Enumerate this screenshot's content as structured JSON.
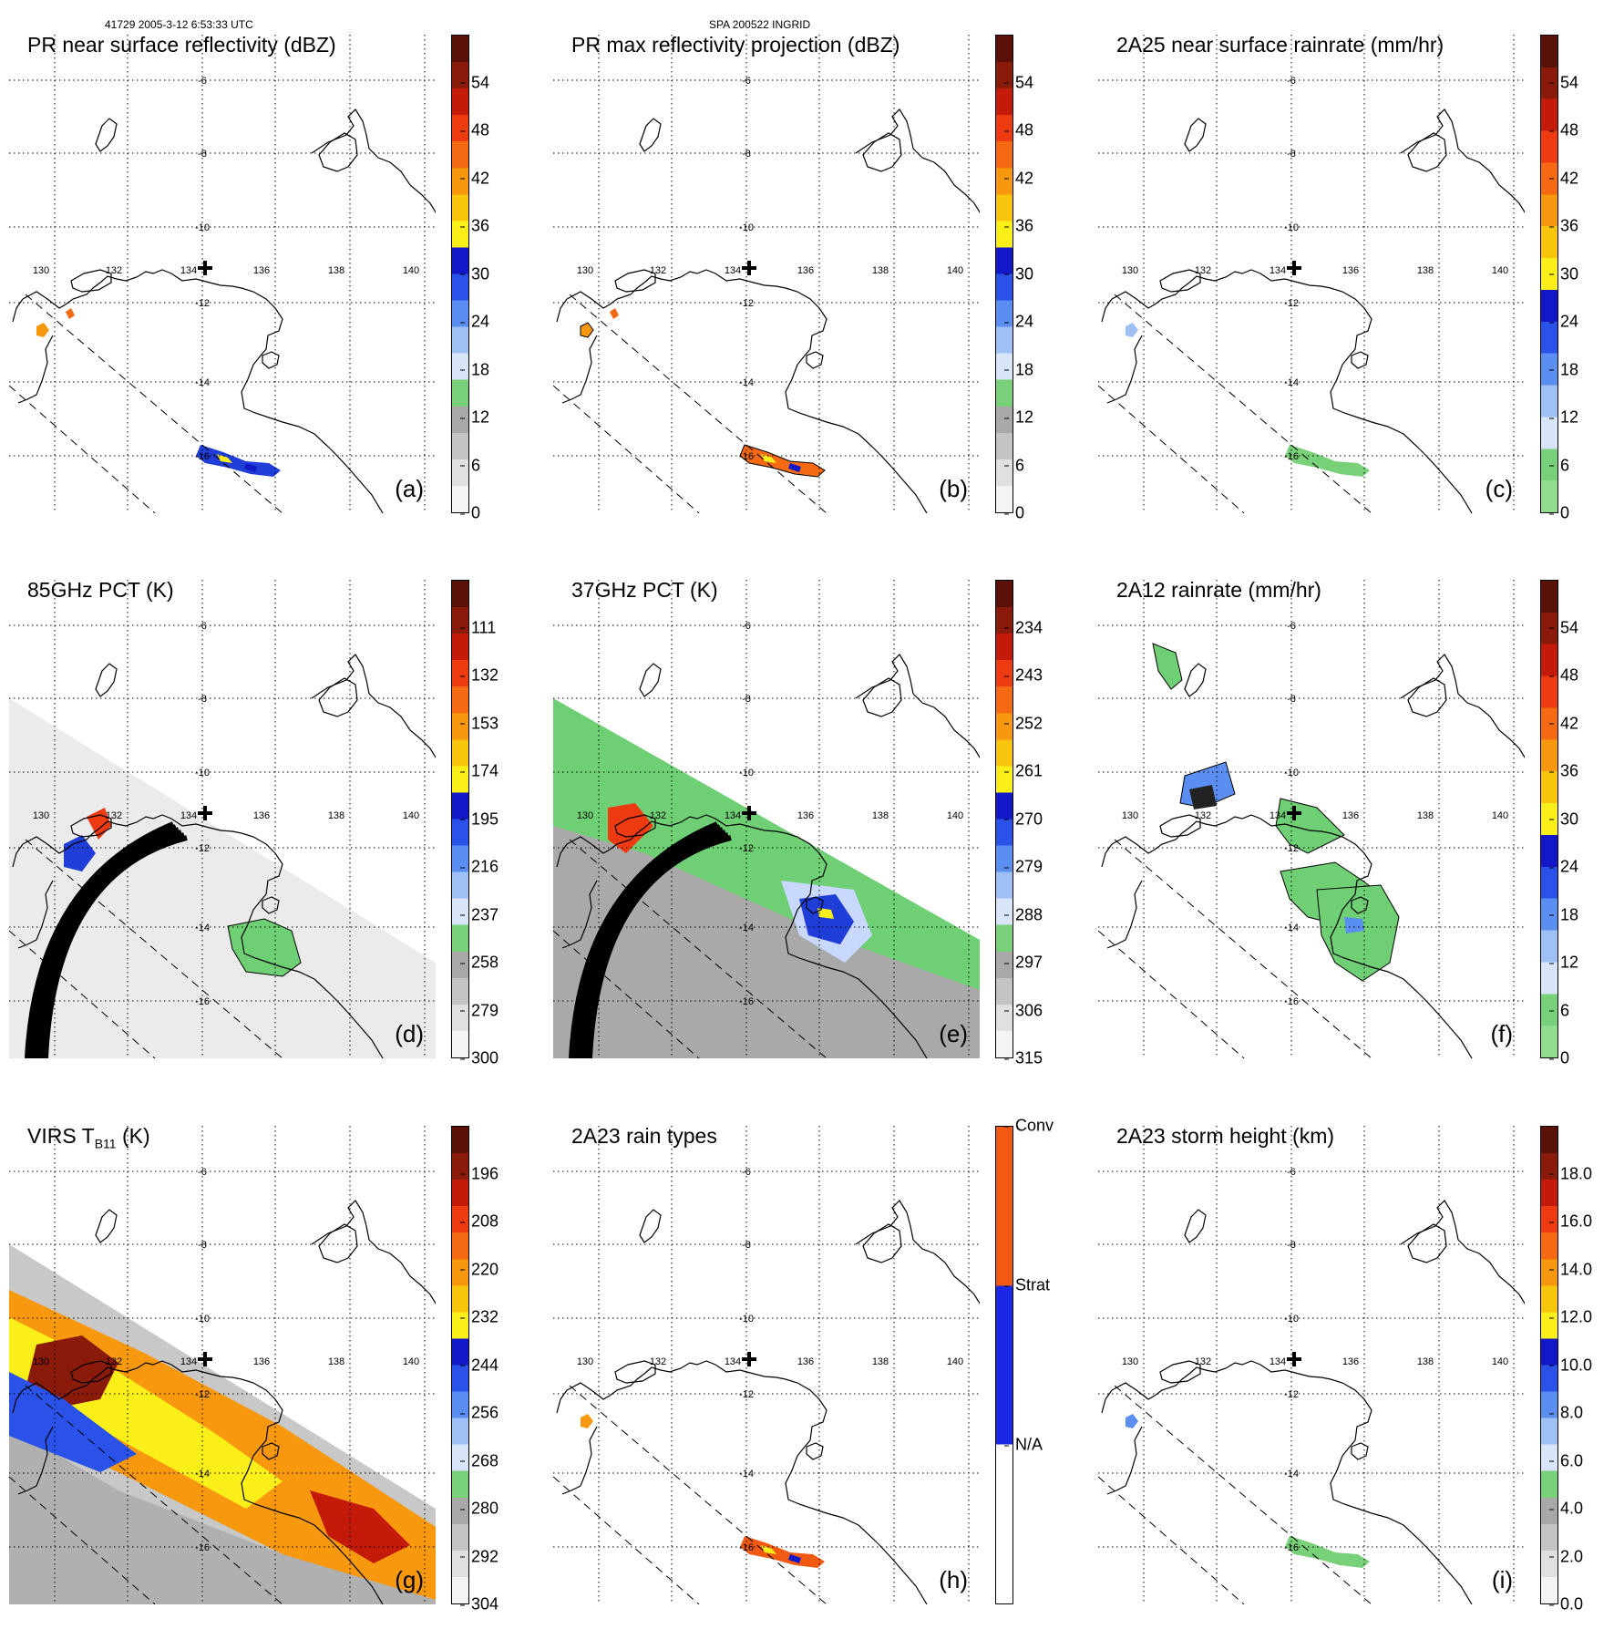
{
  "header": {
    "orbit_info": "41729 2005-3-12 6:53:33 UTC",
    "storm_info": "SPA 200522 INGRID"
  },
  "grid": {
    "lon_labels": [
      "130",
      "132",
      "134",
      "136",
      "138",
      "140"
    ],
    "lat_labels": [
      "-6",
      "-8",
      "-10",
      "-12",
      "-14",
      "-16"
    ]
  },
  "panels": [
    {
      "id": "a",
      "title": "PR near surface reflectivity (dBZ)",
      "label": "(a)",
      "colorbar": "dbz",
      "ticks": [
        "54",
        "48",
        "42",
        "36",
        "30",
        "24",
        "18",
        "12",
        "6",
        "0"
      ]
    },
    {
      "id": "b",
      "title": "PR max reflectivity projection (dBZ)",
      "label": "(b)",
      "colorbar": "dbz",
      "ticks": [
        "54",
        "48",
        "42",
        "36",
        "30",
        "24",
        "18",
        "12",
        "6",
        "0"
      ]
    },
    {
      "id": "c",
      "title": "2A25 near surface rainrate (mm/hr)",
      "label": "(c)",
      "colorbar": "rain",
      "ticks": [
        "54",
        "48",
        "42",
        "36",
        "30",
        "24",
        "18",
        "12",
        "6",
        "0"
      ]
    },
    {
      "id": "d",
      "title": "85GHz PCT (K)",
      "label": "(d)",
      "colorbar": "pct",
      "ticks": [
        "111",
        "132",
        "153",
        "174",
        "195",
        "216",
        "237",
        "258",
        "279",
        "300"
      ]
    },
    {
      "id": "e",
      "title": "37GHz PCT (K)",
      "label": "(e)",
      "colorbar": "pct",
      "ticks": [
        "234",
        "243",
        "252",
        "261",
        "270",
        "279",
        "288",
        "297",
        "306",
        "315"
      ]
    },
    {
      "id": "f",
      "title": "2A12 rainrate (mm/hr)",
      "label": "(f)",
      "colorbar": "rain",
      "ticks": [
        "54",
        "48",
        "42",
        "36",
        "30",
        "24",
        "18",
        "12",
        "6",
        "0"
      ]
    },
    {
      "id": "g",
      "title": "VIRS T",
      "title_sub": "B11",
      "title_suffix": " (K)",
      "label": "(g)",
      "colorbar": "pct",
      "ticks": [
        "196",
        "208",
        "220",
        "232",
        "244",
        "256",
        "268",
        "280",
        "292",
        "304"
      ]
    },
    {
      "id": "h",
      "title": "2A23 rain types",
      "label": "(h)",
      "colorbar": "types",
      "ticks": [
        "Conv",
        "Strat",
        "N/A"
      ]
    },
    {
      "id": "i",
      "title": "2A23 storm height (km)",
      "label": "(i)",
      "colorbar": "height",
      "ticks": [
        "18.0",
        "16.0",
        "14.0",
        "12.0",
        "10.0",
        "8.0",
        "6.0",
        "4.0",
        "2.0",
        "0.0"
      ]
    }
  ],
  "colors": {
    "dbz": [
      "#5a1208",
      "#8a1a0a",
      "#c41a0a",
      "#ee3a10",
      "#f56a12",
      "#f7980f",
      "#f8c40c",
      "#fbef1a",
      "#1218c8",
      "#2a52e8",
      "#5a8ef0",
      "#9ec0f5",
      "#d8e4f8",
      "#78d078",
      "#a8a8a8",
      "#c4c4c4",
      "#e0e0e0",
      "#f4f4f4"
    ],
    "rain": [
      "#5a1208",
      "#8a1a0a",
      "#c41a0a",
      "#ee3a10",
      "#f56a12",
      "#f7980f",
      "#f8c40c",
      "#fbef1a",
      "#1218c8",
      "#2a52e8",
      "#5a8ef0",
      "#9ec0f5",
      "#d8e4f8",
      "#78d078",
      "#90dc90"
    ],
    "types": [
      "#f25a14",
      "#1a28e6",
      "#ffffff"
    ],
    "land_green": "#6fcf74",
    "heavy_blue": "#1f3ed8",
    "grey_field": "#b8b8b8"
  }
}
